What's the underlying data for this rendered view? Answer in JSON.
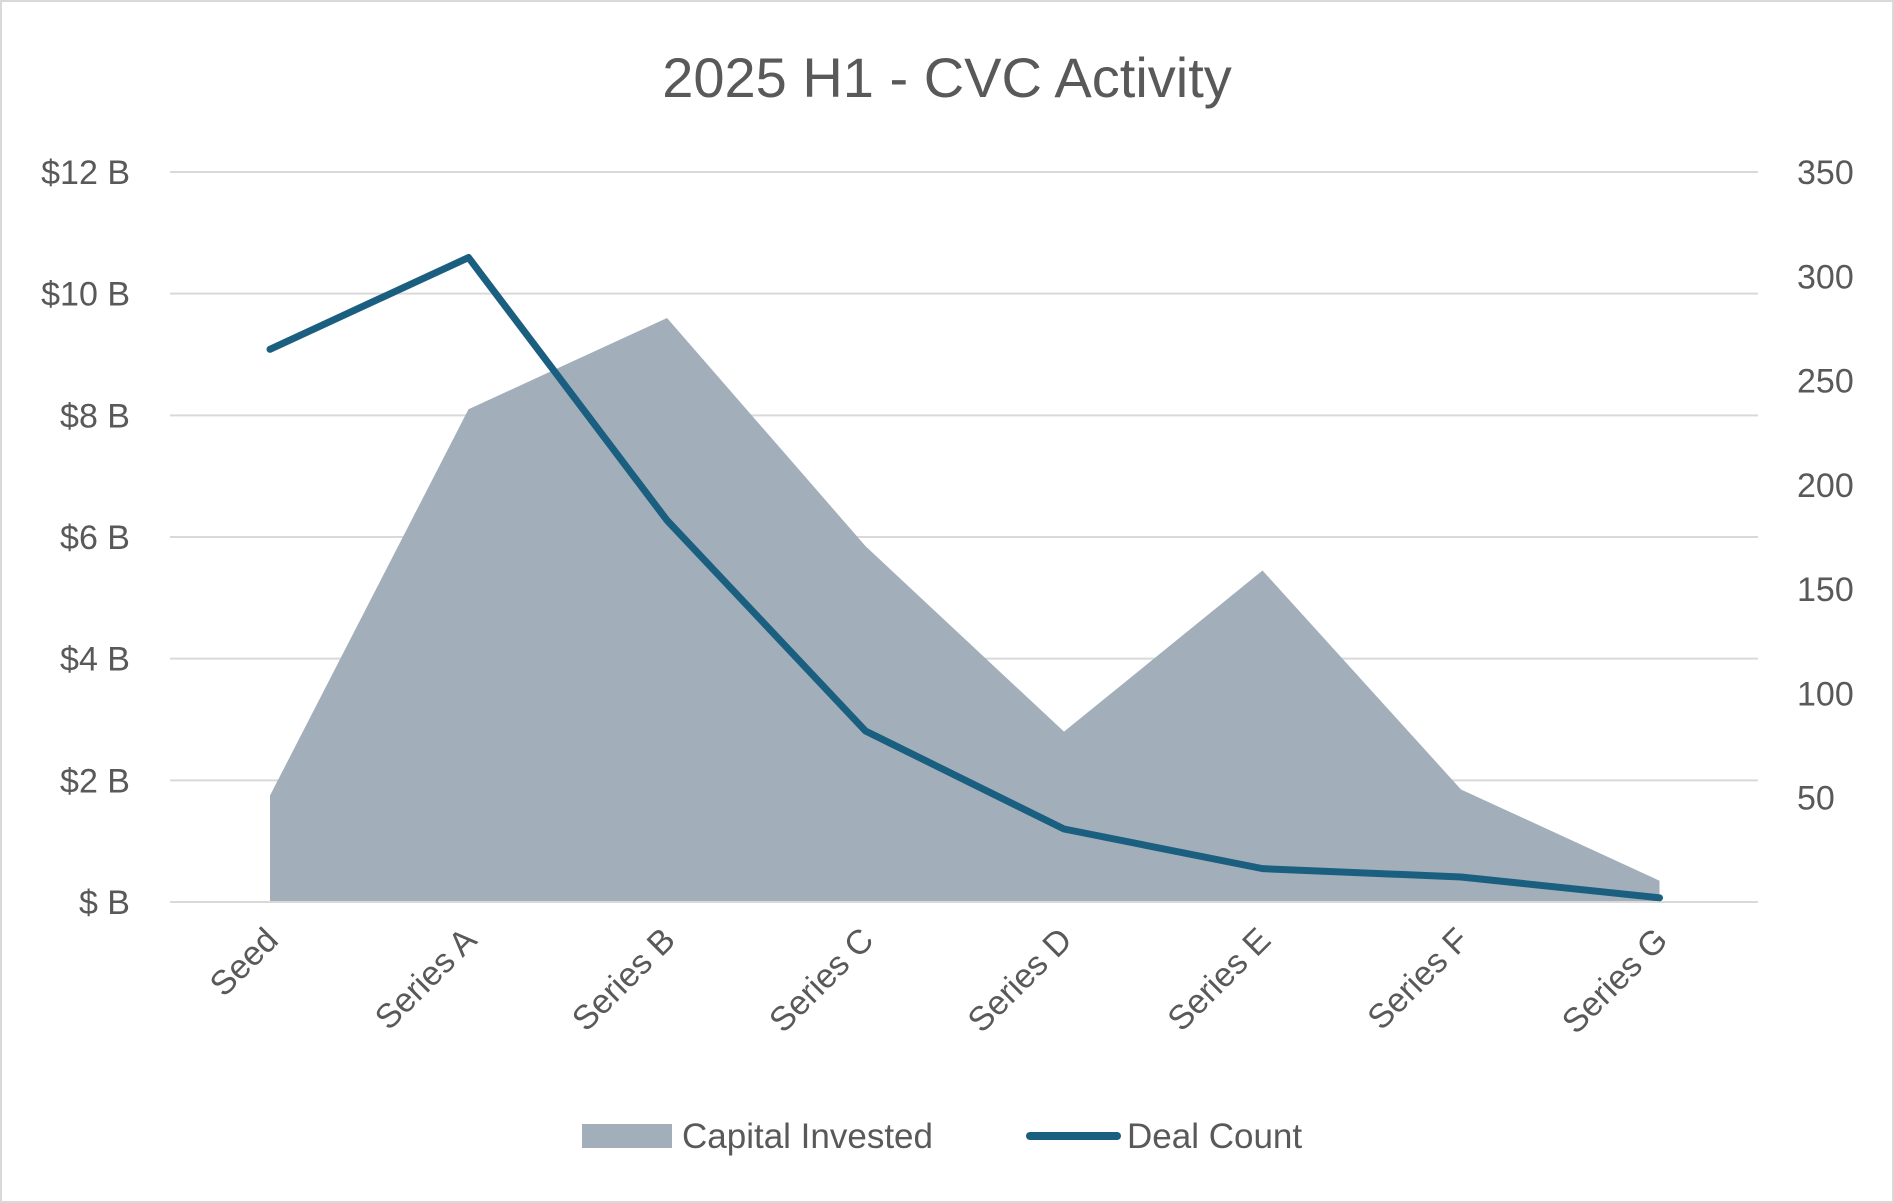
{
  "chart_data": {
    "type": "area",
    "title": "2025 H1 - CVC Activity",
    "categories": [
      "Seed",
      "Series A",
      "Series B",
      "Series C",
      "Series D",
      "Series E",
      "Series F",
      "Series G"
    ],
    "series": [
      {
        "name": "Capital Invested",
        "type": "area",
        "axis": "left",
        "values": [
          1.75,
          8.1,
          9.6,
          5.85,
          2.8,
          5.45,
          1.85,
          0.35
        ],
        "color": "#a2afba"
      },
      {
        "name": "Deal Count",
        "type": "line",
        "axis": "right",
        "values": [
          265,
          309,
          183,
          82,
          35,
          16,
          12,
          2
        ],
        "color": "#1b5f80"
      }
    ],
    "y_left": {
      "lim": [
        0,
        12
      ],
      "ticks": [
        0,
        2,
        4,
        6,
        8,
        10,
        12
      ],
      "tick_labels": [
        "$ B",
        "$2 B",
        "$4 B",
        "$6 B",
        "$8 B",
        "$10 B",
        "$12 B"
      ]
    },
    "y_right": {
      "lim": [
        0,
        350
      ],
      "ticks": [
        50,
        100,
        150,
        200,
        250,
        300,
        350
      ],
      "tick_labels": [
        "50",
        "100",
        "150",
        "200",
        "250",
        "300",
        "350"
      ]
    },
    "grid": true,
    "legend": "bottom"
  }
}
